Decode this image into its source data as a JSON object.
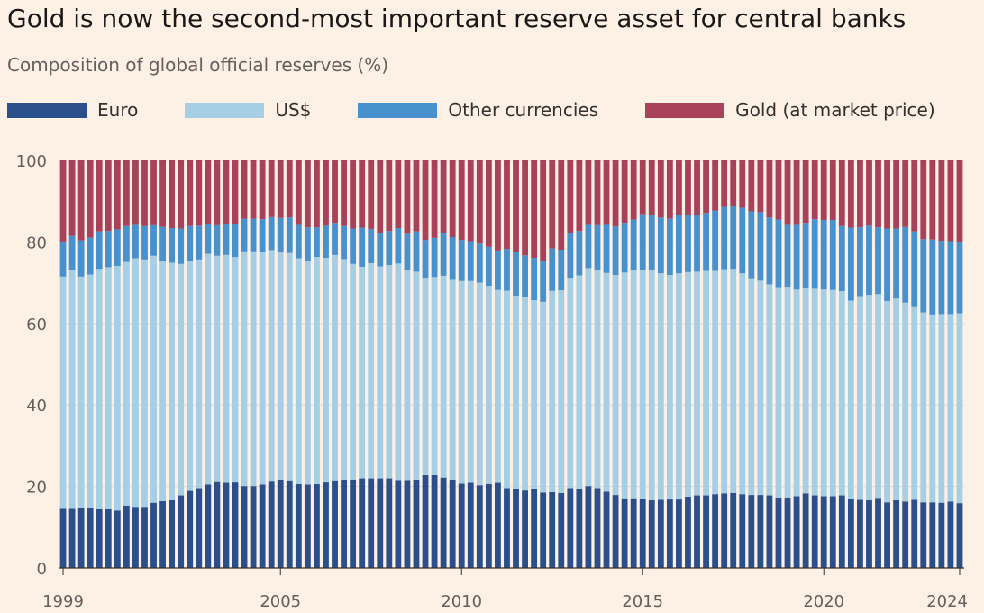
{
  "title": "Gold is now the second-most important reserve asset for central banks",
  "subtitle": "Composition of global official reserves (%)",
  "colors": {
    "background": "#fdf1e6",
    "grid": "#e3d8cf",
    "axis": "#33302e"
  },
  "chart_data": {
    "type": "bar",
    "stacked": true,
    "x_start": "1999 Q1",
    "x_end": "2024 Q4",
    "x_interval": "quarter",
    "ylim": [
      0,
      100
    ],
    "yticks": [
      0,
      20,
      40,
      60,
      80,
      100
    ],
    "xticks": [
      "1999",
      "2005",
      "2010",
      "2015",
      "2020",
      "2024"
    ],
    "grid": true,
    "legend_position": "top-left",
    "series": [
      {
        "name": "Euro",
        "color": "#2a4f8b",
        "values": [
          14.5,
          14.5,
          14.8,
          14.6,
          14.4,
          14.4,
          14.1,
          15.3,
          15.0,
          15.0,
          16.0,
          16.4,
          16.6,
          17.8,
          18.9,
          19.6,
          20.5,
          21.1,
          20.9,
          21.0,
          20.1,
          20.1,
          20.5,
          21.2,
          21.6,
          21.3,
          20.6,
          20.5,
          20.6,
          21.0,
          21.3,
          21.5,
          21.5,
          22.0,
          22.0,
          22.0,
          22.0,
          21.4,
          21.4,
          21.7,
          22.8,
          22.8,
          22.2,
          21.6,
          20.7,
          20.9,
          20.3,
          20.6,
          20.9,
          19.6,
          19.3,
          19.0,
          19.3,
          18.5,
          18.6,
          18.4,
          19.6,
          19.5,
          20.1,
          19.6,
          18.7,
          17.9,
          17.1,
          17.1,
          17.0,
          16.6,
          16.7,
          16.8,
          16.8,
          17.5,
          17.8,
          17.8,
          18.1,
          18.3,
          18.4,
          18.1,
          17.9,
          17.9,
          17.8,
          17.3,
          17.3,
          17.6,
          18.3,
          17.8,
          17.6,
          17.6,
          17.8,
          17.0,
          16.7,
          16.6,
          17.2,
          16.1,
          16.6,
          16.3,
          16.7,
          16.1,
          16.1,
          16.0,
          16.3,
          15.9
        ]
      },
      {
        "name": "US$",
        "color": "#a6cfe6",
        "values": [
          57.0,
          58.7,
          56.7,
          57.4,
          59.0,
          59.4,
          60.0,
          59.8,
          61.0,
          60.7,
          60.6,
          58.8,
          58.3,
          56.8,
          56.3,
          56.1,
          56.6,
          55.5,
          55.9,
          55.3,
          57.6,
          57.6,
          57.0,
          56.8,
          55.8,
          56.0,
          55.4,
          54.8,
          55.7,
          55.1,
          55.5,
          54.3,
          53.1,
          51.9,
          52.8,
          52.0,
          52.3,
          53.3,
          51.6,
          51.0,
          48.4,
          48.6,
          49.5,
          49.1,
          49.7,
          49.5,
          49.7,
          48.6,
          47.3,
          48.4,
          47.5,
          47.5,
          46.4,
          46.8,
          49.4,
          49.7,
          51.6,
          52.3,
          53.5,
          53.4,
          53.7,
          54.0,
          55.4,
          55.9,
          56.1,
          56.5,
          55.6,
          55.1,
          55.5,
          55.1,
          54.9,
          55.1,
          54.8,
          55.0,
          55.0,
          54.2,
          53.2,
          52.6,
          51.8,
          51.6,
          51.7,
          50.7,
          50.4,
          50.7,
          50.7,
          50.6,
          50.1,
          48.6,
          50.0,
          50.4,
          50.0,
          49.4,
          49.5,
          48.8,
          47.3,
          46.6,
          46.1,
          46.3,
          46.0,
          46.6
        ]
      },
      {
        "name": "Other currencies",
        "color": "#4891cf",
        "values": [
          8.6,
          8.3,
          8.9,
          9.1,
          9.2,
          8.9,
          9.0,
          8.8,
          8.2,
          8.2,
          7.5,
          8.5,
          8.5,
          8.7,
          8.7,
          8.3,
          7.3,
          7.5,
          7.6,
          8.2,
          8.0,
          8.0,
          8.1,
          8.1,
          8.5,
          8.7,
          8.2,
          8.3,
          7.3,
          7.9,
          7.9,
          8.1,
          8.7,
          9.6,
          8.4,
          8.2,
          8.4,
          8.7,
          9.0,
          9.9,
          9.3,
          9.6,
          10.4,
          10.5,
          10.1,
          9.8,
          9.6,
          9.6,
          9.7,
          10.3,
          10.7,
          10.2,
          10.4,
          10.1,
          10.4,
          10.0,
          10.9,
          10.9,
          10.6,
          11.1,
          11.8,
          11.9,
          12.2,
          12.5,
          13.7,
          13.4,
          13.7,
          13.8,
          14.4,
          13.9,
          13.9,
          14.2,
          14.8,
          15.3,
          15.5,
          16.1,
          16.4,
          16.8,
          16.4,
          16.6,
          15.2,
          15.9,
          16.0,
          17.1,
          17.1,
          17.2,
          16.0,
          17.9,
          16.9,
          17.0,
          16.4,
          17.8,
          17.2,
          18.6,
          18.6,
          18.0,
          18.4,
          18.0,
          17.9,
          17.5
        ]
      },
      {
        "name": "Gold (at market price)",
        "color": "#a8425a",
        "values": [
          19.9,
          18.5,
          19.6,
          18.9,
          17.4,
          17.3,
          16.9,
          16.1,
          15.8,
          16.1,
          15.9,
          16.3,
          16.6,
          16.7,
          16.1,
          16.0,
          15.6,
          15.9,
          15.6,
          15.5,
          14.3,
          14.3,
          14.4,
          13.9,
          14.1,
          14.0,
          15.8,
          16.4,
          16.4,
          16.0,
          15.3,
          16.1,
          16.7,
          16.5,
          16.8,
          17.8,
          17.3,
          16.6,
          18.0,
          17.4,
          19.5,
          19.0,
          17.9,
          18.8,
          19.5,
          19.8,
          20.4,
          21.2,
          22.1,
          21.7,
          22.5,
          23.3,
          23.9,
          24.6,
          21.6,
          21.9,
          17.9,
          17.3,
          15.8,
          15.9,
          15.8,
          16.2,
          15.3,
          14.5,
          13.2,
          13.5,
          14.0,
          14.3,
          13.3,
          13.5,
          13.4,
          12.9,
          12.3,
          11.4,
          11.1,
          11.6,
          12.5,
          12.7,
          14.0,
          14.5,
          15.8,
          15.8,
          15.3,
          14.4,
          14.6,
          14.6,
          16.1,
          16.5,
          16.4,
          16.0,
          16.4,
          16.7,
          16.7,
          16.3,
          17.4,
          19.3,
          19.4,
          19.7,
          19.8,
          20.0
        ]
      }
    ]
  }
}
